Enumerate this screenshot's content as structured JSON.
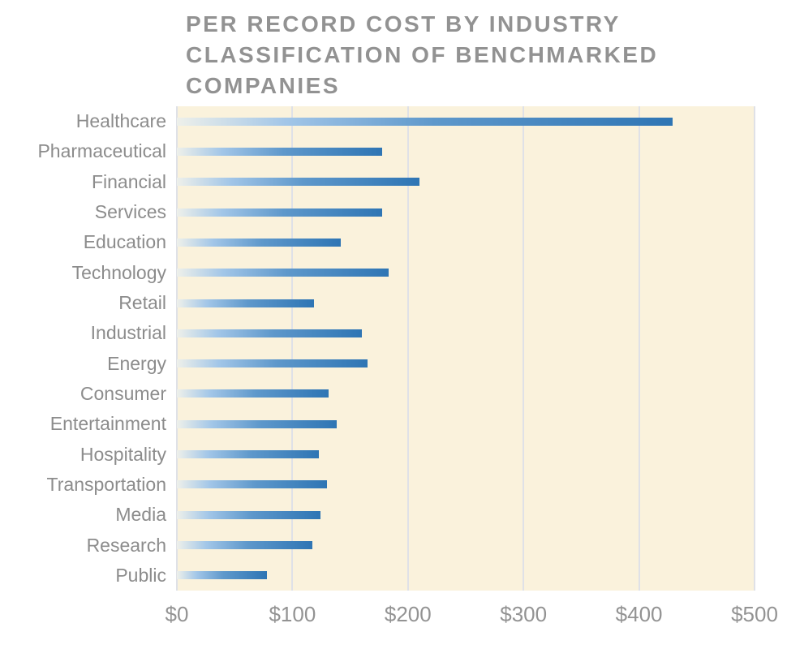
{
  "chart_data": {
    "type": "bar",
    "orientation": "horizontal",
    "title": "PER RECORD COST BY INDUSTRY CLASSIFICATION OF BENCHMARKED COMPANIES",
    "title_lines": [
      "PER RECORD COST BY INDUSTRY",
      "CLASSIFICATION OF BENCHMARKED",
      "COMPANIES"
    ],
    "categories": [
      "Healthcare",
      "Pharmaceutical",
      "Financial",
      "Services",
      "Education",
      "Technology",
      "Retail",
      "Industrial",
      "Energy",
      "Consumer",
      "Entertainment",
      "Hospitality",
      "Transportation",
      "Media",
      "Research",
      "Public"
    ],
    "values": [
      429,
      178,
      210,
      178,
      142,
      183,
      119,
      160,
      165,
      131,
      138,
      123,
      130,
      124,
      117,
      78
    ],
    "xlabel": "",
    "ylabel": "",
    "xlim": [
      0,
      500
    ],
    "x_tick_values": [
      0,
      100,
      200,
      300,
      400,
      500
    ],
    "x_tick_labels": [
      "$0",
      "$100",
      "$200",
      "$300",
      "$400",
      "$500"
    ],
    "grid": "vertical-only",
    "legend": "none",
    "colors": {
      "plot_background": "#faf2dc",
      "gridline": "#dfe1e7",
      "bar_gradient_start": "#eef0ea",
      "bar_gradient_mid": "#5e98cb",
      "bar_gradient_end": "#2e75b4",
      "title_text": "#929292",
      "category_text": "#8c8c8c",
      "tick_text": "#939393"
    }
  }
}
